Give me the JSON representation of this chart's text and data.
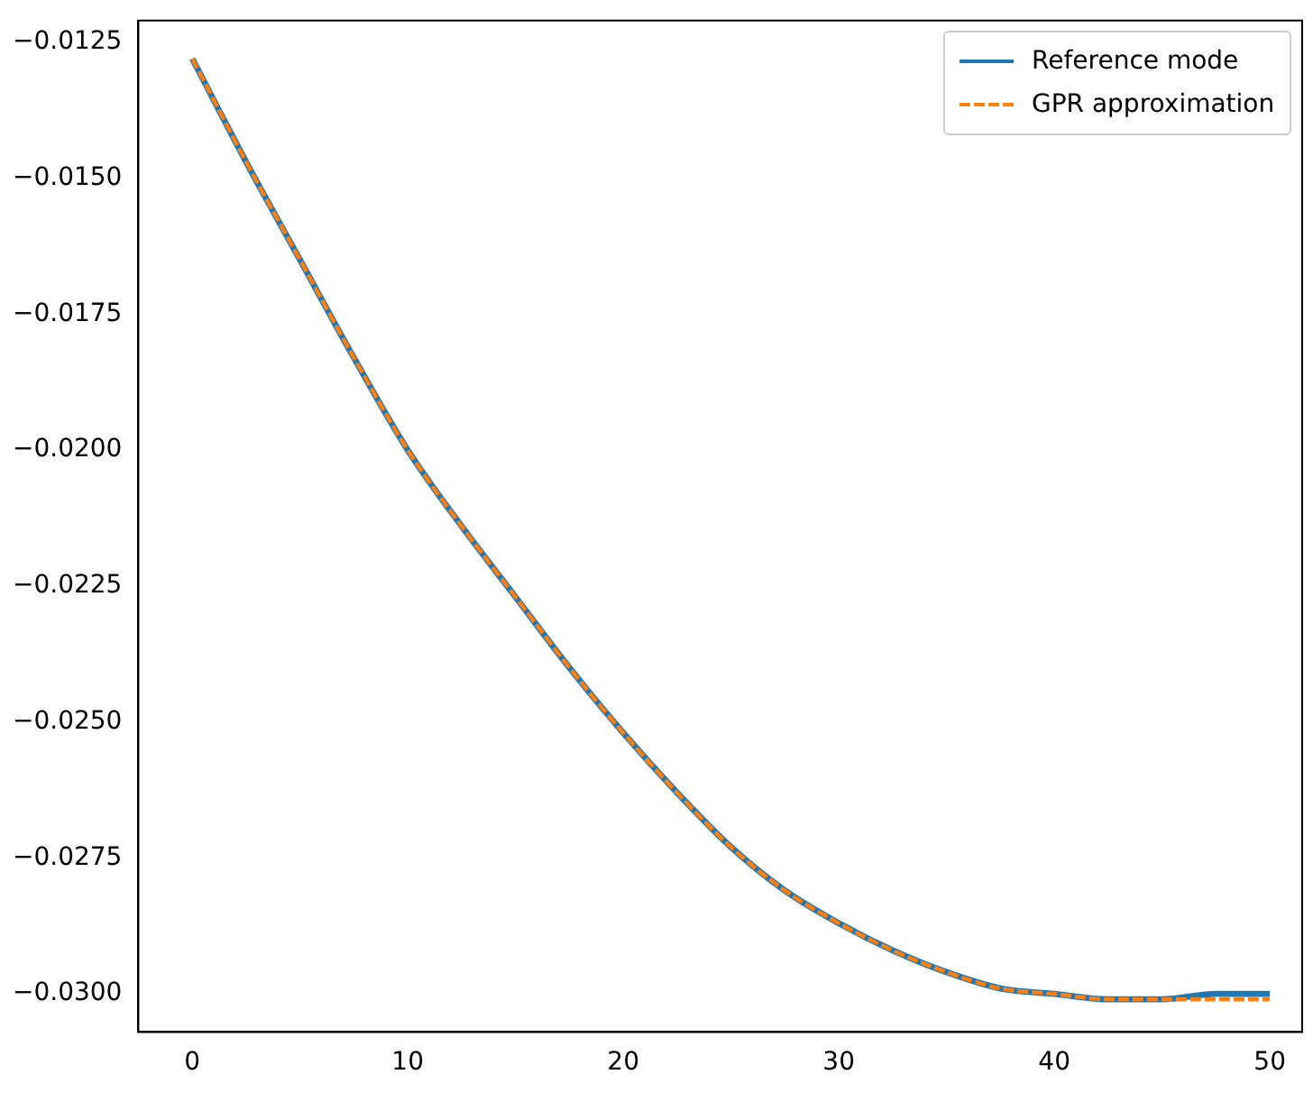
{
  "chart_data": {
    "type": "line",
    "xlim": [
      -2.5,
      51.5
    ],
    "ylim": [
      -0.0307,
      -0.0121
    ],
    "xticks": [
      0,
      10,
      20,
      30,
      40,
      50
    ],
    "yticks": [
      {
        "value": -0.03,
        "label": "−0.0300"
      },
      {
        "value": -0.0275,
        "label": "−0.0275"
      },
      {
        "value": -0.025,
        "label": "−0.0250"
      },
      {
        "value": -0.0225,
        "label": "−0.0225"
      },
      {
        "value": -0.02,
        "label": "−0.0200"
      },
      {
        "value": -0.0175,
        "label": "−0.0175"
      },
      {
        "value": -0.015,
        "label": "−0.0150"
      },
      {
        "value": -0.0125,
        "label": "−0.0125"
      }
    ],
    "grid": false,
    "legend": "top right",
    "marker": "none",
    "x": [
      0,
      2.5,
      5,
      7.5,
      10,
      12.5,
      15,
      17.5,
      20,
      22.5,
      25,
      27.5,
      30,
      32.5,
      35,
      37.5,
      40,
      42.5,
      45,
      47.5,
      50
    ],
    "series": [
      {
        "name": "Reference mode",
        "color": "#1f77b4",
        "line_style": "solid",
        "values": [
          -0.0128,
          -0.0147,
          -0.0165,
          -0.0183,
          -0.02,
          -0.0214,
          -0.0227,
          -0.024,
          -0.0252,
          -0.0263,
          -0.0273,
          -0.0281,
          -0.0287,
          -0.0292,
          -0.0296,
          -0.0299,
          -0.03,
          -0.0301,
          -0.0301,
          -0.03,
          -0.03
        ]
      },
      {
        "name": "GPR approximation",
        "color": "#ff7f0e",
        "line_style": "dashed",
        "values": [
          -0.0128,
          -0.0147,
          -0.0165,
          -0.0183,
          -0.02,
          -0.0214,
          -0.0227,
          -0.024,
          -0.0252,
          -0.0263,
          -0.0273,
          -0.0281,
          -0.0287,
          -0.0292,
          -0.0296,
          -0.0299,
          -0.03,
          -0.0301,
          -0.0301,
          -0.0301,
          -0.0301
        ]
      }
    ]
  }
}
